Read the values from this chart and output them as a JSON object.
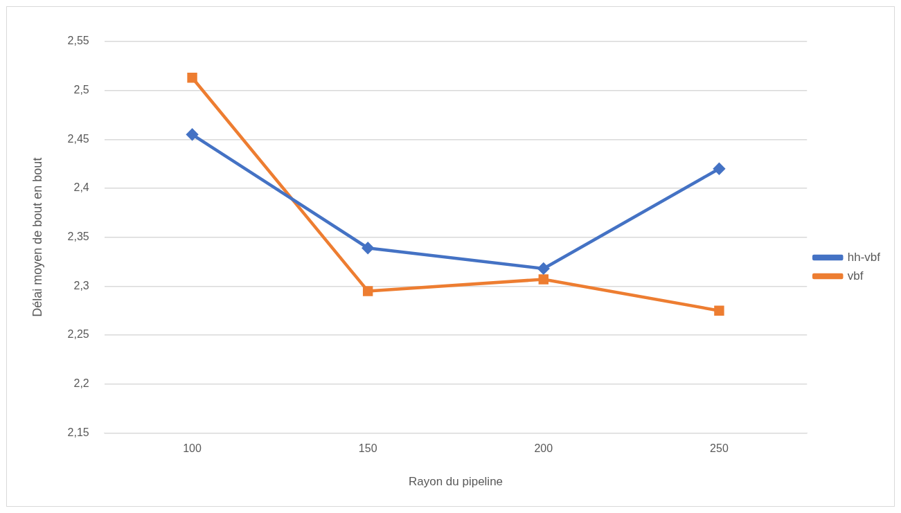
{
  "chart_data": {
    "type": "line",
    "xlabel": "Rayon du pipeline",
    "ylabel": "Délai moyen de bout en bout",
    "categories": [
      "100",
      "150",
      "200",
      "250"
    ],
    "series": [
      {
        "name": "hh-vbf",
        "color": "#4472c4",
        "marker": "diamond",
        "values": [
          2.455,
          2.339,
          2.318,
          2.42
        ]
      },
      {
        "name": "vbf",
        "color": "#ed7d31",
        "marker": "square",
        "values": [
          2.513,
          2.295,
          2.307,
          2.275
        ]
      }
    ],
    "ylim": [
      2.15,
      2.55
    ],
    "yticks": [
      {
        "value": 2.15,
        "label": "2,15"
      },
      {
        "value": 2.2,
        "label": "2,2"
      },
      {
        "value": 2.25,
        "label": "2,25"
      },
      {
        "value": 2.3,
        "label": "2,3"
      },
      {
        "value": 2.35,
        "label": "2,35"
      },
      {
        "value": 2.4,
        "label": "2,4"
      },
      {
        "value": 2.45,
        "label": "2,45"
      },
      {
        "value": 2.5,
        "label": "2,5"
      },
      {
        "value": 2.55,
        "label": "2,55"
      }
    ],
    "grid": "y",
    "legend": "right",
    "line_style": "solid"
  }
}
